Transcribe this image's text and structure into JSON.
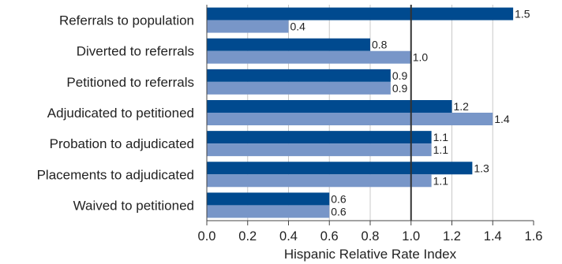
{
  "chart_data": {
    "type": "bar",
    "orientation": "horizontal",
    "title": "",
    "xlabel": "Hispanic Relative Rate Index",
    "ylabel": "",
    "xlim": [
      0,
      1.6
    ],
    "x_ticks": [
      "0.0",
      "0.2",
      "0.4",
      "0.6",
      "0.8",
      "1.0",
      "1.2",
      "1.4",
      "1.6"
    ],
    "reference_line": 1.0,
    "grid": "vertical",
    "legend": "none",
    "categories": [
      "Referrals to population",
      "Diverted to referrals",
      "Petitioned to referrals",
      "Adjudicated to petitioned",
      "Probation to adjudicated",
      "Placements to adjudicated",
      "Waived to petitioned"
    ],
    "series": [
      {
        "values": [
          1.5,
          0.8,
          0.9,
          1.2,
          1.1,
          1.3,
          0.6
        ],
        "labels": [
          "1.5",
          "0.8",
          "0.9",
          "1.2",
          "1.1",
          "1.3",
          "0.6"
        ],
        "color": "#004a8f"
      },
      {
        "values": [
          0.4,
          1.0,
          0.9,
          1.4,
          1.1,
          1.1,
          0.6
        ],
        "labels": [
          "0.4",
          "1.0",
          "0.9",
          "1.4",
          "1.1",
          "1.1",
          "0.6"
        ],
        "color": "#7896c8"
      }
    ]
  }
}
